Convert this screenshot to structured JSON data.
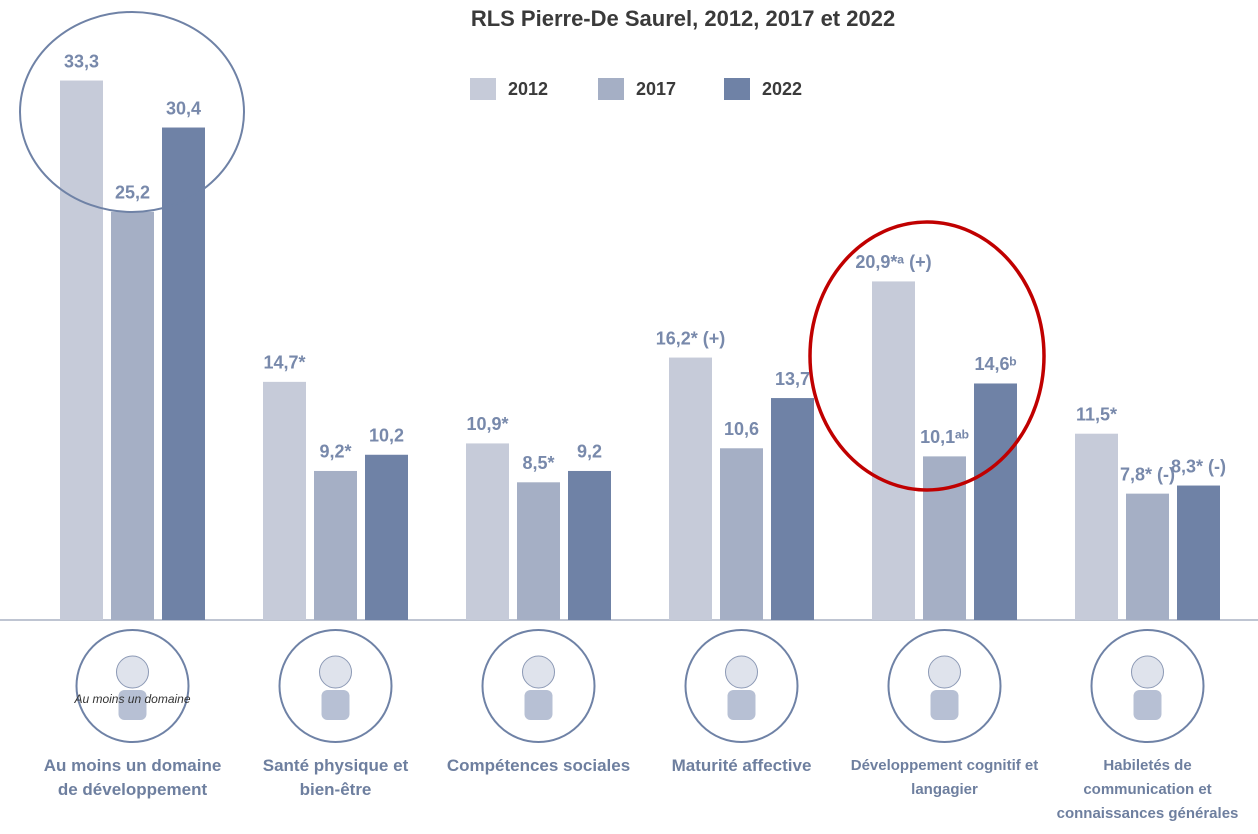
{
  "chart_data": {
    "type": "bar",
    "title": "RLS Pierre-De Saurel, 2012, 2017 et 2022",
    "categories": [
      "Au moins un domaine de développement",
      "Santé physique et bien-être",
      "Compétences sociales",
      "Maturité affective",
      "Développement cognitif et langagier",
      "Habiletés de communication et connaissances générales"
    ],
    "icon_text": "Au moins un domaine",
    "series": [
      {
        "name": "2012",
        "color": "#c6cbd9",
        "values": [
          33.3,
          14.7,
          10.9,
          16.2,
          20.9,
          11.5
        ],
        "value_labels": [
          "33,3",
          "14,7*",
          "10,9*",
          "16,2* (+)",
          "20,9*ᵃ (+)",
          "11,5*"
        ]
      },
      {
        "name": "2017",
        "color": "#a5afc5",
        "values": [
          25.2,
          9.2,
          8.5,
          10.6,
          10.1,
          7.8
        ],
        "value_labels": [
          "25,2",
          "9,2*",
          "8,5*",
          "10,6",
          "10,1ᵃᵇ",
          "7,8* (-)"
        ]
      },
      {
        "name": "2022",
        "color": "#6f82a6",
        "values": [
          30.4,
          10.2,
          9.2,
          13.7,
          14.6,
          8.3
        ],
        "value_labels": [
          "30,4",
          "10,2",
          "9,2",
          "13,7",
          "14,6ᵇ",
          "8,3* (-)"
        ]
      }
    ],
    "legend": "top"
  }
}
